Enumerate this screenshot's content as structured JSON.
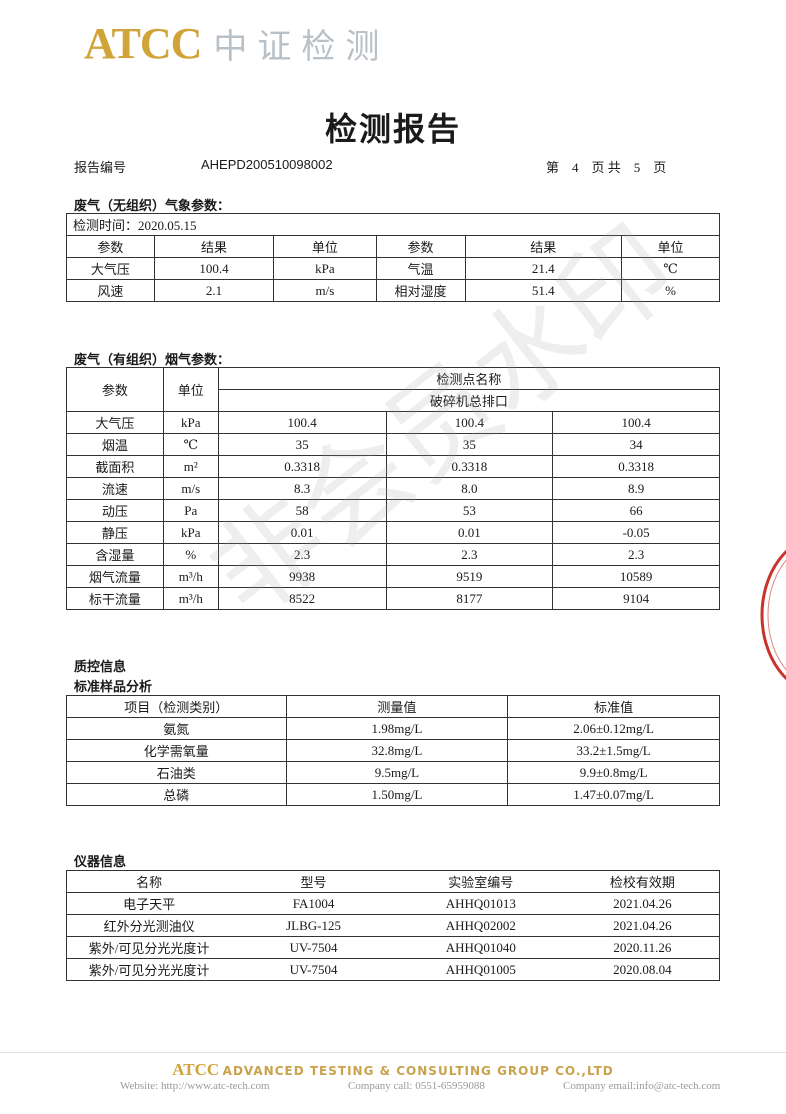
{
  "header": {
    "logo_en": "ATCC",
    "logo_cn": "中证检测",
    "title": "检测报告"
  },
  "meta": {
    "report_no_label": "报告编号",
    "report_no": "AHEPD200510098002",
    "page_text": "第　4　页 共　5　页"
  },
  "weather": {
    "section_title": "废气（无组织）气象参数：",
    "date_line": "检测时间：2020.05.15",
    "headers": [
      "参数",
      "结果",
      "单位",
      "参数",
      "结果",
      "单位"
    ],
    "rows": [
      [
        "大气压",
        "100.4",
        "kPa",
        "气温",
        "21.4",
        "℃"
      ],
      [
        "风速",
        "2.1",
        "m/s",
        "相对湿度",
        "51.4",
        "%"
      ]
    ]
  },
  "flue": {
    "section_title": "废气（有组织）烟气参数：",
    "h_param": "参数",
    "h_unit": "单位",
    "h_point": "检测点名称",
    "point_name": "破碎机总排口",
    "rows": [
      [
        "大气压",
        "kPa",
        "100.4",
        "100.4",
        "100.4"
      ],
      [
        "烟温",
        "℃",
        "35",
        "35",
        "34"
      ],
      [
        "截面积",
        "m²",
        "0.3318",
        "0.3318",
        "0.3318"
      ],
      [
        "流速",
        "m/s",
        "8.3",
        "8.0",
        "8.9"
      ],
      [
        "动压",
        "Pa",
        "58",
        "53",
        "66"
      ],
      [
        "静压",
        "kPa",
        "0.01",
        "0.01",
        "-0.05"
      ],
      [
        "含湿量",
        "%",
        "2.3",
        "2.3",
        "2.3"
      ],
      [
        "烟气流量",
        "m³/h",
        "9938",
        "9519",
        "10589"
      ],
      [
        "标干流量",
        "m³/h",
        "8522",
        "8177",
        "9104"
      ]
    ]
  },
  "qc": {
    "section_title": "质控信息",
    "sub_title": "标准样品分析",
    "headers": [
      "项目（检测类别）",
      "测量值",
      "标准值"
    ],
    "rows": [
      [
        "氨氮",
        "1.98mg/L",
        "2.06±0.12mg/L"
      ],
      [
        "化学需氧量",
        "32.8mg/L",
        "33.2±1.5mg/L"
      ],
      [
        "石油类",
        "9.5mg/L",
        "9.9±0.8mg/L"
      ],
      [
        "总磷",
        "1.50mg/L",
        "1.47±0.07mg/L"
      ]
    ]
  },
  "instruments": {
    "section_title": "仪器信息",
    "headers": [
      "名称",
      "型号",
      "实验室编号",
      "检校有效期"
    ],
    "rows": [
      [
        "电子天平",
        "FA1004",
        "AHHQ01013",
        "2021.04.26"
      ],
      [
        "红外分光测油仪",
        "JLBG-125",
        "AHHQ02002",
        "2021.04.26"
      ],
      [
        "紫外/可见分光光度计",
        "UV-7504",
        "AHHQ01040",
        "2020.11.26"
      ],
      [
        "紫外/可见分光光度计",
        "UV-7504",
        "AHHQ01005",
        "2020.08.04"
      ]
    ]
  },
  "watermark": "非会员水印",
  "footer": {
    "atcc": "ATCC",
    "company": "ADVANCED TESTING & CONSULTING GROUP CO.,LTD",
    "website": "Website: http://www.atc-tech.com",
    "phone": "Company call: 0551-65959088",
    "email": "Company email:info@atc-tech.com"
  },
  "colors": {
    "brand_gold": "#d1a43a",
    "stamp_red": "#c8332a"
  }
}
